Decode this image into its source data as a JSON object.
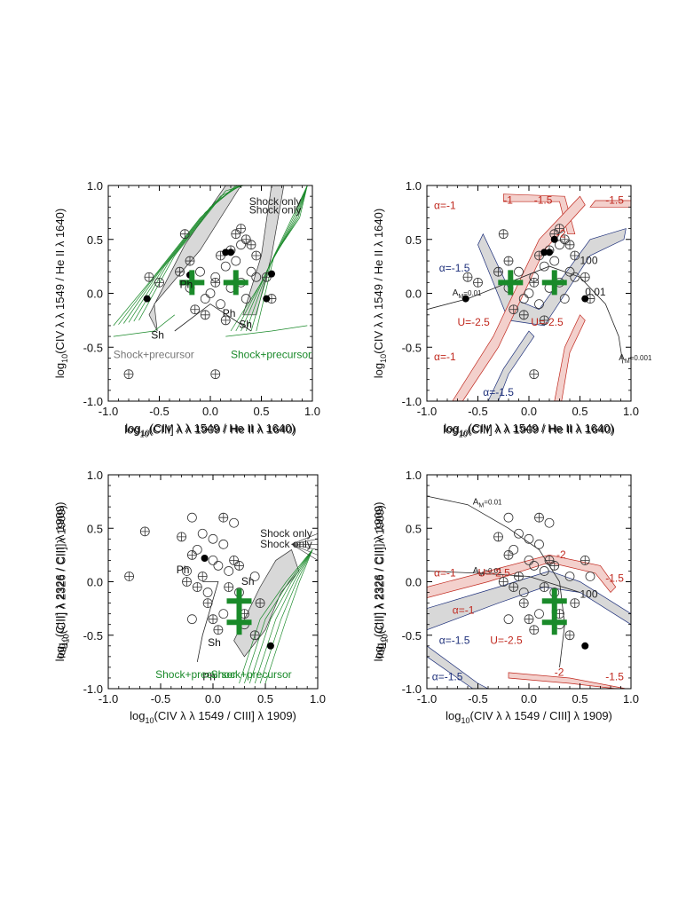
{
  "colors": {
    "green": "#1a8a2a",
    "red": "#c0281e",
    "blue": "#1d2f7a",
    "gray": "#777777",
    "fill": "#d8d8d8"
  },
  "chart_data": [
    {
      "type": "scatter",
      "panel": "top-left",
      "xlabel_lines": [
        "log10(CIV λ λ 1549 / He II λ 1640)",
        "log10(CIII] λ λ 1909 / He II λ 1640)"
      ],
      "ylabel_lines": [
        "log10(CIV λ λ 1549 / He II λ 1640)"
      ],
      "xlim": [
        -1,
        1
      ],
      "ylim": [
        -1,
        1
      ],
      "xticks": [
        "-1.0",
        "-0.5",
        "0.0",
        "0.5",
        "1.0"
      ],
      "yticks": [
        "-1.0",
        "-0.5",
        "0.0",
        "0.5",
        "1.0"
      ],
      "open_circles": [
        [
          -0.1,
          0.2
        ],
        [
          0.05,
          0.15
        ],
        [
          0.15,
          0.25
        ],
        [
          0.2,
          0.05
        ],
        [
          0.3,
          0.1
        ],
        [
          0.4,
          0.2
        ],
        [
          -0.05,
          -0.05
        ],
        [
          0.1,
          -0.1
        ],
        [
          0.25,
          0.3
        ],
        [
          0.35,
          -0.05
        ],
        [
          0.45,
          0.15
        ],
        [
          0.0,
          0.0
        ],
        [
          -0.2,
          0.05
        ],
        [
          0.3,
          0.45
        ]
      ],
      "crossed_circles": [
        [
          -0.6,
          0.15
        ],
        [
          -0.5,
          0.1
        ],
        [
          -0.3,
          0.2
        ],
        [
          -0.2,
          0.3
        ],
        [
          -0.15,
          -0.15
        ],
        [
          0.1,
          0.35
        ],
        [
          0.2,
          0.4
        ],
        [
          0.25,
          0.55
        ],
        [
          0.3,
          0.6
        ],
        [
          0.35,
          0.5
        ],
        [
          0.45,
          0.35
        ],
        [
          0.55,
          0.15
        ],
        [
          0.6,
          -0.05
        ],
        [
          0.15,
          -0.25
        ],
        [
          -0.05,
          -0.2
        ],
        [
          0.05,
          0.1
        ],
        [
          -0.8,
          -0.75
        ],
        [
          0.05,
          -0.75
        ],
        [
          -0.25,
          0.55
        ],
        [
          0.4,
          0.45
        ]
      ],
      "filled_circles": [
        [
          -0.62,
          -0.05
        ],
        [
          -0.2,
          0.17
        ],
        [
          0.15,
          0.38
        ],
        [
          0.2,
          0.38
        ],
        [
          0.55,
          -0.05
        ],
        [
          0.6,
          0.18
        ]
      ],
      "big_plus": [
        [
          -0.18,
          0.1
        ],
        [
          0.25,
          0.1
        ]
      ],
      "annotations": [
        {
          "text": "Shock only",
          "x": 0.38,
          "y": 0.82,
          "color": "#222222"
        },
        {
          "text": "Shock only",
          "x": 0.38,
          "y": 0.74,
          "color": "#222222"
        },
        {
          "text": "Shock+precursor",
          "x": -0.95,
          "y": -0.6,
          "color": "#777777"
        },
        {
          "text": "Shock+precursor",
          "x": 0.2,
          "y": -0.6,
          "color": "#1a8a2a"
        },
        {
          "text": "Ph",
          "x": -0.3,
          "y": 0.05,
          "color": "#111111"
        },
        {
          "text": "Ph",
          "x": 0.12,
          "y": -0.22,
          "color": "#111111"
        },
        {
          "text": "Sh",
          "x": -0.58,
          "y": -0.42,
          "color": "#111111"
        },
        {
          "text": "Sh",
          "x": 0.28,
          "y": -0.32,
          "color": "#111111"
        }
      ]
    },
    {
      "type": "scatter",
      "panel": "top-right",
      "xlabel_lines": [
        "log10(CIV λ λ 1549 / He II λ 1640)",
        "log10(CIII] λ λ 1909 / He II λ 1640)"
      ],
      "ylabel_lines": [
        "log10(CIV λ λ 1549 / He II λ 1640)"
      ],
      "xlim": [
        -1,
        1
      ],
      "ylim": [
        -1,
        1
      ],
      "xticks": [
        "-1.0",
        "-0.5",
        "0.0",
        "0.5",
        "1.0"
      ],
      "yticks": [
        "-1.0",
        "-0.5",
        "0.0",
        "0.5",
        "1.0"
      ],
      "open_circles": [
        [
          -0.1,
          0.2
        ],
        [
          0.05,
          0.15
        ],
        [
          0.15,
          0.25
        ],
        [
          0.2,
          0.05
        ],
        [
          0.3,
          0.1
        ],
        [
          0.4,
          0.2
        ],
        [
          -0.05,
          -0.05
        ],
        [
          0.1,
          -0.1
        ],
        [
          0.25,
          0.3
        ],
        [
          0.35,
          -0.05
        ],
        [
          0.45,
          0.15
        ],
        [
          0.0,
          0.0
        ],
        [
          -0.2,
          0.05
        ],
        [
          0.3,
          0.45
        ]
      ],
      "crossed_circles": [
        [
          -0.6,
          0.15
        ],
        [
          -0.5,
          0.1
        ],
        [
          -0.3,
          0.2
        ],
        [
          -0.2,
          0.3
        ],
        [
          -0.15,
          -0.15
        ],
        [
          0.1,
          0.35
        ],
        [
          0.2,
          0.4
        ],
        [
          0.25,
          0.55
        ],
        [
          0.3,
          0.6
        ],
        [
          0.35,
          0.5
        ],
        [
          0.45,
          0.35
        ],
        [
          0.55,
          0.15
        ],
        [
          0.6,
          -0.05
        ],
        [
          0.15,
          -0.25
        ],
        [
          -0.05,
          -0.2
        ],
        [
          0.05,
          0.1
        ],
        [
          0.05,
          -0.75
        ],
        [
          -0.25,
          0.55
        ],
        [
          0.4,
          0.45
        ]
      ],
      "filled_circles": [
        [
          -0.62,
          -0.05
        ],
        [
          0.15,
          0.38
        ],
        [
          0.2,
          0.38
        ],
        [
          0.55,
          -0.05
        ],
        [
          0.25,
          0.5
        ]
      ],
      "big_plus": [
        [
          -0.18,
          0.1
        ],
        [
          0.25,
          0.1
        ]
      ],
      "annotations": [
        {
          "text": "α=-1",
          "x": -0.93,
          "y": 0.78,
          "color": "#c0281e"
        },
        {
          "text": "-1",
          "x": -0.25,
          "y": 0.83,
          "color": "#c0281e"
        },
        {
          "text": "-1.5",
          "x": 0.05,
          "y": 0.83,
          "color": "#c0281e"
        },
        {
          "text": "-1.5",
          "x": 0.75,
          "y": 0.83,
          "color": "#c0281e"
        },
        {
          "text": "α=-1.5",
          "x": -0.88,
          "y": 0.2,
          "color": "#1d2f7a"
        },
        {
          "text": "-2",
          "x": 0.27,
          "y": 0.52,
          "color": "#c0281e"
        },
        {
          "text": "U=-2.5",
          "x": -0.7,
          "y": -0.3,
          "color": "#c0281e"
        },
        {
          "text": "U=-2.5",
          "x": 0.02,
          "y": -0.3,
          "color": "#c0281e"
        },
        {
          "text": "α=-1",
          "x": -0.93,
          "y": -0.62,
          "color": "#c0281e"
        },
        {
          "text": "α=-1.5",
          "x": -0.45,
          "y": -0.95,
          "color": "#1d2f7a"
        },
        {
          "text": "A_M=0.01",
          "x": -0.75,
          "y": -0.02,
          "color": "#222222"
        },
        {
          "text": "0.01",
          "x": 0.55,
          "y": -0.02,
          "color": "#222222"
        },
        {
          "text": "A_M=0.001",
          "x": 0.88,
          "y": -0.62,
          "color": "#222222"
        },
        {
          "text": "100",
          "x": 0.5,
          "y": 0.27,
          "color": "#222222"
        }
      ]
    },
    {
      "type": "scatter",
      "panel": "bottom-left",
      "xlabel_lines": [
        "log10(CIV λ λ 1549 / CIII] λ 1909)"
      ],
      "ylabel_lines": [
        "log10(CIII] λ 2326 / CIII] λ 1909)",
        "log10(CII] λ 2326 / CII] λ 1909)"
      ],
      "xlim": [
        -1,
        1
      ],
      "ylim": [
        -1,
        1
      ],
      "xticks": [
        "-1.0",
        "-0.5",
        "0.0",
        "0.5",
        "1.0"
      ],
      "yticks": [
        "-1.0",
        "-0.5",
        "0.0",
        "0.5",
        "1.0"
      ],
      "open_circles": [
        [
          -0.2,
          0.6
        ],
        [
          -0.1,
          0.45
        ],
        [
          0.0,
          0.4
        ],
        [
          0.1,
          0.35
        ],
        [
          0.2,
          0.55
        ],
        [
          -0.15,
          0.3
        ],
        [
          0.05,
          0.15
        ],
        [
          0.15,
          0.1
        ],
        [
          -0.05,
          -0.1
        ],
        [
          0.25,
          -0.1
        ],
        [
          0.1,
          -0.3
        ],
        [
          0.3,
          -0.4
        ],
        [
          -0.2,
          -0.35
        ],
        [
          0.4,
          0.05
        ],
        [
          0.0,
          0.2
        ],
        [
          -0.25,
          0.1
        ]
      ],
      "crossed_circles": [
        [
          -0.65,
          0.47
        ],
        [
          -0.8,
          0.05
        ],
        [
          -0.3,
          0.42
        ],
        [
          -0.2,
          0.25
        ],
        [
          -0.1,
          0.05
        ],
        [
          -0.05,
          -0.2
        ],
        [
          0.05,
          -0.45
        ],
        [
          0.15,
          -0.05
        ],
        [
          0.2,
          0.2
        ],
        [
          0.3,
          -0.3
        ],
        [
          0.4,
          -0.5
        ],
        [
          0.45,
          -0.2
        ],
        [
          -0.15,
          -0.05
        ],
        [
          0.1,
          0.6
        ],
        [
          0.0,
          -0.35
        ],
        [
          -0.25,
          0.0
        ],
        [
          0.25,
          0.15
        ]
      ],
      "filled_circles": [
        [
          -0.08,
          0.22
        ],
        [
          0.55,
          -0.6
        ]
      ],
      "big_plus": [
        [
          0.25,
          -0.18
        ],
        [
          0.25,
          -0.38
        ]
      ],
      "annotations": [
        {
          "text": "Shock only",
          "x": 0.45,
          "y": 0.42,
          "color": "#222222"
        },
        {
          "text": "Shock only",
          "x": 0.45,
          "y": 0.32,
          "color": "#222222"
        },
        {
          "text": "Ph",
          "x": -0.35,
          "y": 0.08,
          "color": "#111111"
        },
        {
          "text": "Sh",
          "x": 0.27,
          "y": -0.03,
          "color": "#111111"
        },
        {
          "text": "Sh",
          "x": -0.05,
          "y": -0.6,
          "color": "#111111"
        },
        {
          "text": "Ph",
          "x": -0.1,
          "y": -0.92,
          "color": "#111111"
        },
        {
          "text": "Shock+precursor",
          "x": -0.55,
          "y": -0.9,
          "color": "#1a8a2a"
        },
        {
          "text": "Shock+precursor",
          "x": -0.02,
          "y": -0.9,
          "color": "#1a8a2a"
        }
      ]
    },
    {
      "type": "scatter",
      "panel": "bottom-right",
      "xlabel_lines": [
        "log10(CIV λ λ 1549 / CIII] λ 1909)"
      ],
      "ylabel_lines": [
        "log10(CIII] λ 2326 / CIII] λ 1909)",
        "log10(CII] λ 2326 / CII] λ 1909)"
      ],
      "xlim": [
        -1,
        1
      ],
      "ylim": [
        -1,
        1
      ],
      "xticks": [
        "-1.0",
        "-0.5",
        "0.0",
        "0.5",
        "1.0"
      ],
      "yticks": [
        "-1.0",
        "-0.5",
        "0.0",
        "0.5",
        "1.0"
      ],
      "open_circles": [
        [
          -0.2,
          0.6
        ],
        [
          -0.1,
          0.45
        ],
        [
          0.0,
          0.4
        ],
        [
          0.1,
          0.35
        ],
        [
          0.2,
          0.55
        ],
        [
          -0.15,
          0.3
        ],
        [
          0.05,
          0.15
        ],
        [
          0.15,
          0.1
        ],
        [
          -0.05,
          -0.1
        ],
        [
          0.25,
          -0.1
        ],
        [
          0.1,
          -0.3
        ],
        [
          0.3,
          -0.4
        ],
        [
          -0.2,
          -0.35
        ],
        [
          0.4,
          0.05
        ],
        [
          0.0,
          0.2
        ],
        [
          0.6,
          0.05
        ]
      ],
      "crossed_circles": [
        [
          -0.3,
          0.42
        ],
        [
          -0.2,
          0.25
        ],
        [
          -0.1,
          0.05
        ],
        [
          -0.05,
          -0.2
        ],
        [
          0.05,
          -0.45
        ],
        [
          0.15,
          -0.05
        ],
        [
          0.2,
          0.2
        ],
        [
          0.3,
          -0.3
        ],
        [
          0.4,
          -0.5
        ],
        [
          0.45,
          -0.2
        ],
        [
          -0.15,
          -0.05
        ],
        [
          0.1,
          0.6
        ],
        [
          0.0,
          -0.35
        ],
        [
          -0.25,
          0.0
        ],
        [
          0.25,
          0.15
        ],
        [
          0.55,
          0.2
        ]
      ],
      "filled_circles": [
        [
          0.55,
          -0.6
        ]
      ],
      "big_plus": [
        [
          0.25,
          -0.18
        ],
        [
          0.25,
          -0.38
        ]
      ],
      "annotations": [
        {
          "text": "A_M=0.01",
          "x": -0.55,
          "y": 0.72,
          "color": "#222222"
        },
        {
          "text": "A_M=0.01",
          "x": -0.55,
          "y": 0.08,
          "color": "#222222"
        },
        {
          "text": "α=-1",
          "x": -0.93,
          "y": 0.05,
          "color": "#c0281e"
        },
        {
          "text": "U=-2.5",
          "x": -0.5,
          "y": 0.05,
          "color": "#c0281e"
        },
        {
          "text": "-2",
          "x": 0.27,
          "y": 0.22,
          "color": "#c0281e"
        },
        {
          "text": "-1.5",
          "x": 0.75,
          "y": 0.0,
          "color": "#c0281e"
        },
        {
          "text": "α=-1",
          "x": -0.75,
          "y": -0.3,
          "color": "#c0281e"
        },
        {
          "text": "α=-1.5",
          "x": -0.95,
          "y": -0.92,
          "color": "#1d2f7a"
        },
        {
          "text": "α=-1.5",
          "x": -0.88,
          "y": -0.58,
          "color": "#1d2f7a"
        },
        {
          "text": "U=-2.5",
          "x": -0.38,
          "y": -0.58,
          "color": "#c0281e"
        },
        {
          "text": "-2",
          "x": 0.25,
          "y": -0.88,
          "color": "#c0281e"
        },
        {
          "text": "-1.5",
          "x": 0.75,
          "y": -0.92,
          "color": "#c0281e"
        },
        {
          "text": "100",
          "x": 0.5,
          "y": -0.15,
          "color": "#222222"
        }
      ]
    }
  ]
}
